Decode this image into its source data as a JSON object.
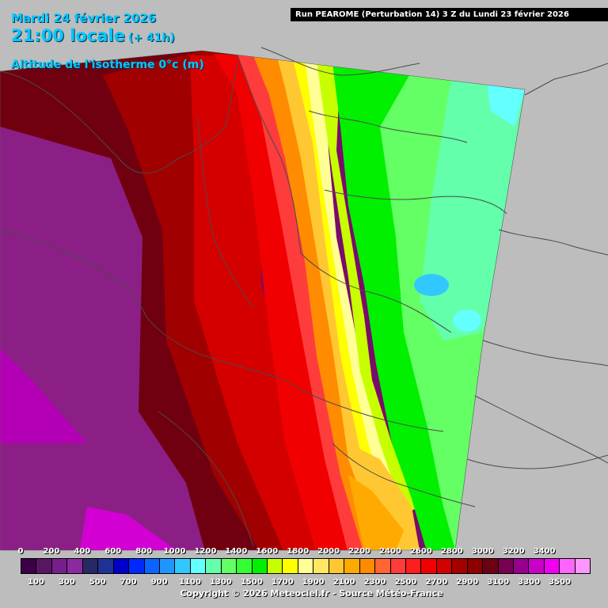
{
  "header": {
    "date": "Mardi 24 février 2026",
    "time": "21:00 locale",
    "offset": "(+ 41h)",
    "parameter": "Altitude de l'isotherme 0°c (m)",
    "run": "Run PEAROME (Perturbation 14) 3 Z du Lundi 23 février 2026"
  },
  "legend": {
    "top_labels": [
      "0",
      "200",
      "400",
      "600",
      "800",
      "1000",
      "1200",
      "1400",
      "1600",
      "1800",
      "2000",
      "2200",
      "2400",
      "2600",
      "2800",
      "3000",
      "3200",
      "3400"
    ],
    "bottom_labels": [
      "100",
      "300",
      "500",
      "700",
      "900",
      "1100",
      "1300",
      "1500",
      "1700",
      "1900",
      "2100",
      "2300",
      "2500",
      "2700",
      "2900",
      "3100",
      "3300",
      "3500"
    ],
    "colors": [
      "#3c0046",
      "#5a1464",
      "#781e8c",
      "#8c28a0",
      "#282864",
      "#1e3296",
      "#0000c8",
      "#0028ff",
      "#0a64ff",
      "#1e96ff",
      "#32c8ff",
      "#64ffff",
      "#64ffaa",
      "#64ff64",
      "#32ff32",
      "#00f000",
      "#c8ff00",
      "#ffff00",
      "#ffff96",
      "#ffe664",
      "#ffc832",
      "#ffaa00",
      "#ff8c00",
      "#ff6432",
      "#ff3c3c",
      "#ff1e1e",
      "#f00000",
      "#d20000",
      "#a50000",
      "#8c0000",
      "#6e0014",
      "#780050",
      "#96008c",
      "#c800c8",
      "#f000f0",
      "#ff64ff",
      "#ff96ff"
    ]
  },
  "copyright": "Copyright © 2026 Meteociel.fr - Source Météo-France"
}
